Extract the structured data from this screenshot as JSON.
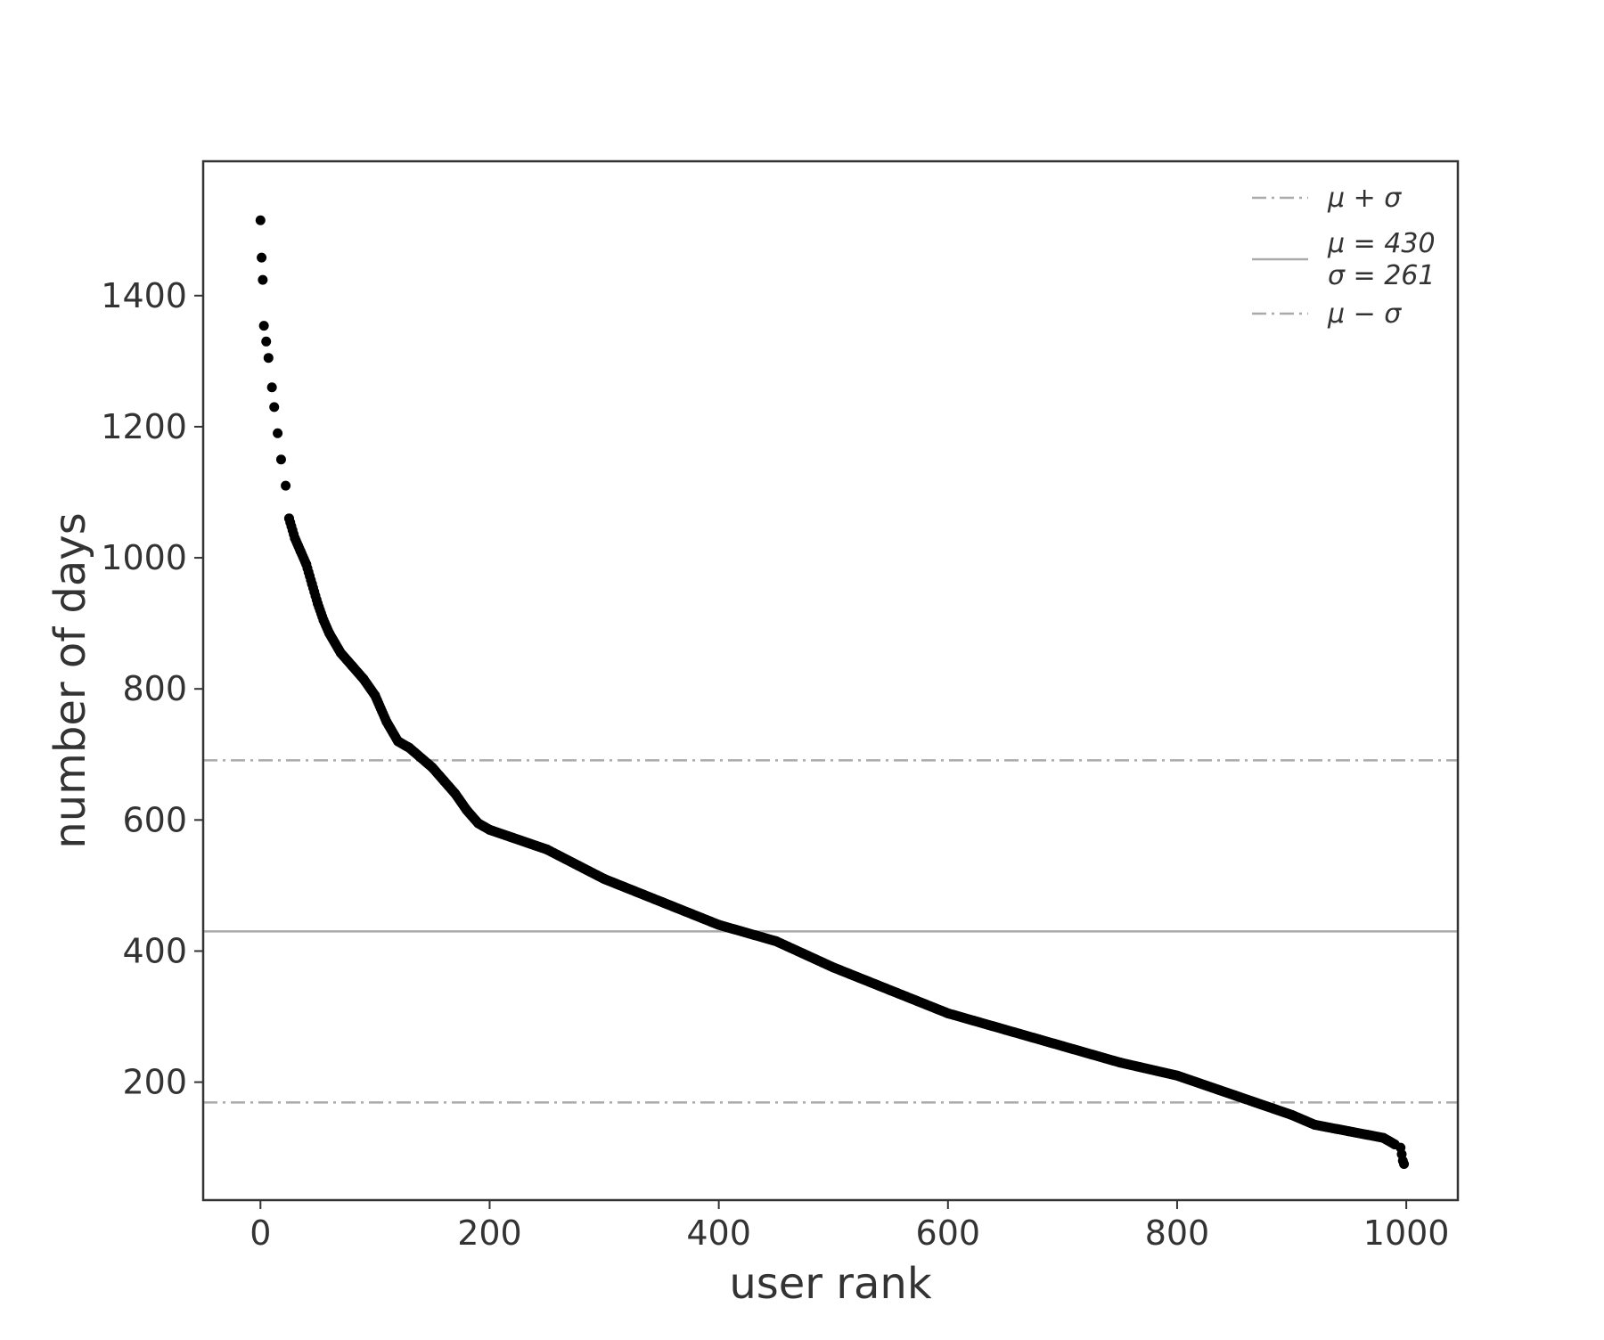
{
  "chart_data": {
    "type": "scatter",
    "title": "",
    "xlabel": "user rank",
    "ylabel": "number of days",
    "xlim": [
      -50,
      1045
    ],
    "ylim": [
      20,
      1605
    ],
    "xticks": [
      0,
      200,
      400,
      600,
      800,
      1000
    ],
    "yticks": [
      200,
      400,
      600,
      800,
      1000,
      1200,
      1400
    ],
    "grid": false,
    "legend_position": "top-right",
    "marker_color": "#000000",
    "reference_line_color": "#aaaaaa",
    "reference_lines": [
      {
        "name": "μ + σ",
        "value": 691,
        "style": "dashdot"
      },
      {
        "name": "μ = 430",
        "subname": "σ = 261",
        "value": 430,
        "style": "solid"
      },
      {
        "name": "μ − σ",
        "value": 169,
        "style": "dashdot"
      }
    ],
    "series_curve": {
      "description_points_x": [
        0,
        1,
        2,
        3,
        5,
        7,
        10,
        12,
        15,
        18,
        22,
        25,
        30,
        35,
        40,
        45,
        50,
        55,
        60,
        70,
        80,
        90,
        100,
        110,
        120,
        130,
        150,
        160,
        170,
        180,
        190,
        200,
        250,
        300,
        350,
        400,
        450,
        500,
        550,
        600,
        650,
        700,
        750,
        800,
        850,
        900,
        920,
        950,
        980,
        990,
        995,
        996,
        997,
        998
      ]
    },
    "series": [
      {
        "x": [
          0,
          1,
          2,
          3,
          5,
          7,
          10,
          12,
          15,
          18,
          22,
          25,
          30,
          35,
          40,
          45,
          50,
          55,
          60,
          70,
          80,
          90,
          100,
          110,
          120,
          130,
          150,
          160,
          170,
          180,
          190,
          200,
          250,
          300,
          350,
          400,
          450,
          500,
          550,
          600,
          650,
          700,
          750,
          800,
          850,
          900,
          920,
          950,
          980,
          990,
          995,
          996,
          997,
          998
        ],
        "y": [
          1515,
          1458,
          1424,
          1354,
          1330,
          1305,
          1260,
          1230,
          1190,
          1150,
          1110,
          1060,
          1030,
          1010,
          990,
          960,
          930,
          905,
          885,
          855,
          835,
          815,
          790,
          750,
          720,
          710,
          680,
          660,
          640,
          615,
          595,
          585,
          555,
          510,
          475,
          440,
          415,
          375,
          340,
          305,
          280,
          255,
          230,
          210,
          180,
          150,
          135,
          125,
          115,
          105,
          100,
          90,
          80,
          75
        ]
      }
    ]
  }
}
